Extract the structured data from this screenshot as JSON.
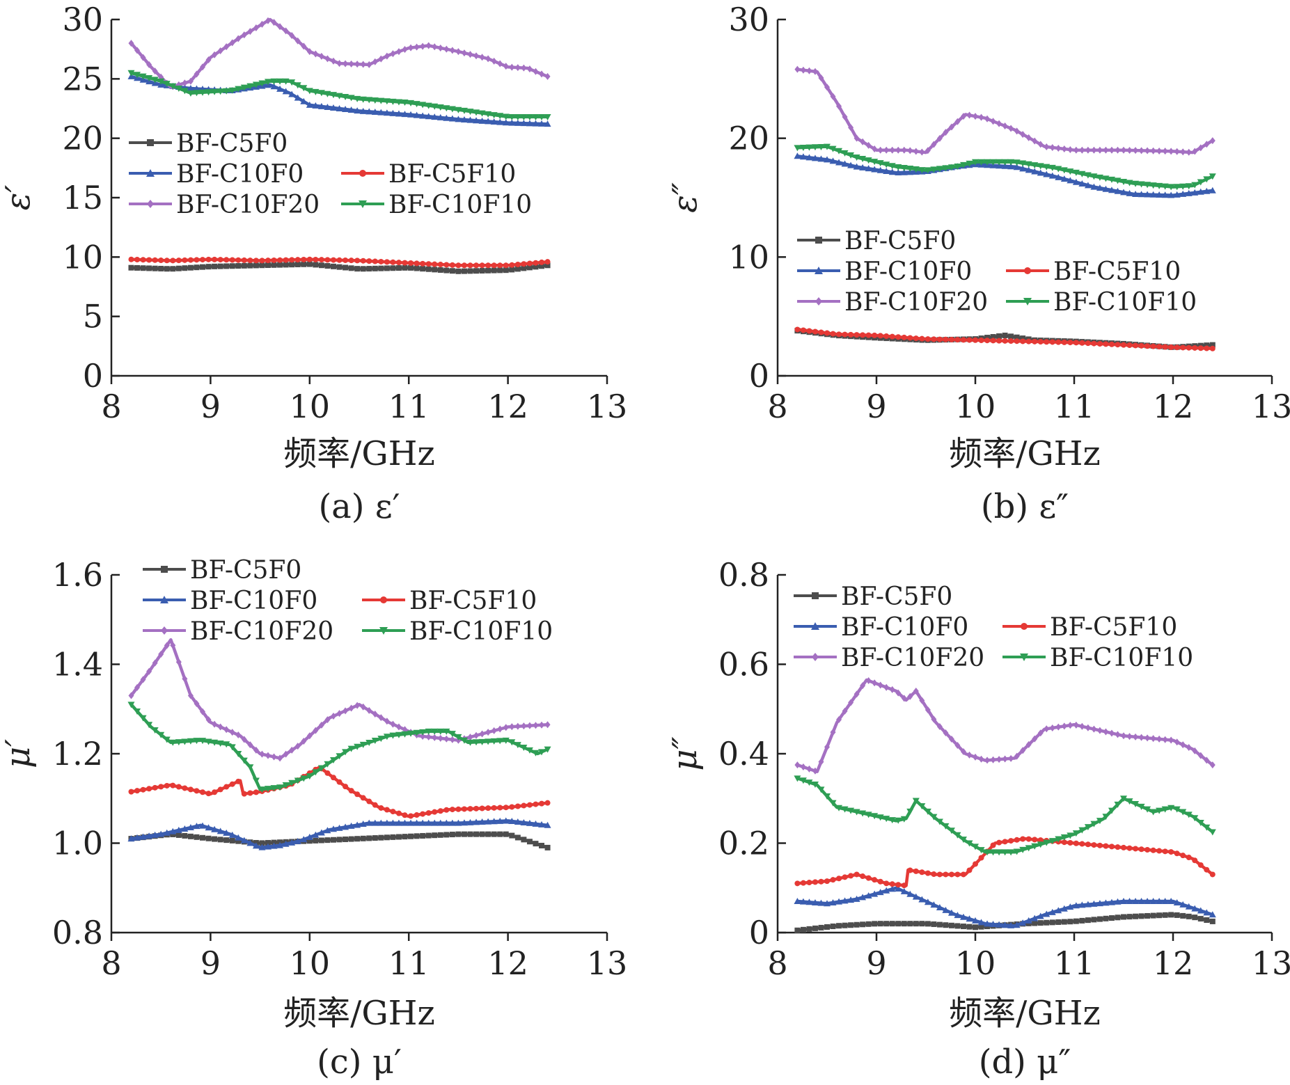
{
  "colors": {
    "BF-C5F0": "#4d4d4d",
    "BF-C10F0": "#3a5db0",
    "BF-C5F10": "#e53935",
    "BF-C10F20": "#a470c2",
    "BF-C10F10": "#2e9e54"
  },
  "chart_data": [
    {
      "type": "line",
      "caption": "(a) ε′",
      "xlabel": "频率/GHz",
      "ylabel": "ε′",
      "xlim": [
        8,
        13
      ],
      "ylim": [
        0,
        30
      ],
      "xticks": [
        "8",
        "9",
        "10",
        "11",
        "12",
        "13"
      ],
      "yticks": [
        "0",
        "5",
        "10",
        "15",
        "20",
        "25",
        "30"
      ],
      "legend_placement": "middle-left",
      "series": [
        {
          "name": "BF-C5F0",
          "marker": "square",
          "x": [
            8.2,
            8.6,
            9.0,
            9.5,
            10.0,
            10.5,
            11.0,
            11.5,
            12.0,
            12.4
          ],
          "y": [
            9.1,
            9.0,
            9.2,
            9.3,
            9.4,
            9.0,
            9.1,
            8.8,
            8.9,
            9.3
          ]
        },
        {
          "name": "BF-C10F0",
          "marker": "triangle-up",
          "x": [
            8.2,
            8.5,
            8.8,
            9.2,
            9.6,
            9.8,
            10.0,
            10.5,
            11.0,
            11.5,
            12.0,
            12.4
          ],
          "y": [
            25.2,
            24.5,
            24.2,
            24.0,
            24.5,
            23.8,
            22.8,
            22.3,
            22.0,
            21.6,
            21.3,
            21.2
          ]
        },
        {
          "name": "BF-C5F10",
          "marker": "circle",
          "x": [
            8.2,
            8.6,
            9.0,
            9.5,
            10.0,
            10.5,
            11.0,
            11.5,
            12.0,
            12.4
          ],
          "y": [
            9.8,
            9.7,
            9.8,
            9.7,
            9.8,
            9.7,
            9.5,
            9.3,
            9.3,
            9.6
          ]
        },
        {
          "name": "BF-C10F20",
          "marker": "diamond",
          "x": [
            8.2,
            8.4,
            8.6,
            8.8,
            9.0,
            9.3,
            9.6,
            9.8,
            10.0,
            10.3,
            10.6,
            10.8,
            11.0,
            11.2,
            11.5,
            11.8,
            12.0,
            12.2,
            12.4
          ],
          "y": [
            28.0,
            26.0,
            24.3,
            24.8,
            26.8,
            28.5,
            30.0,
            28.8,
            27.3,
            26.3,
            26.2,
            27.0,
            27.6,
            27.8,
            27.3,
            26.7,
            26.0,
            25.9,
            25.2
          ]
        },
        {
          "name": "BF-C10F10",
          "marker": "triangle-down",
          "x": [
            8.2,
            8.5,
            8.8,
            9.2,
            9.6,
            9.8,
            10.0,
            10.5,
            11.0,
            11.5,
            12.0,
            12.4
          ],
          "y": [
            25.5,
            24.8,
            23.8,
            24.0,
            24.8,
            24.8,
            24.0,
            23.3,
            23.0,
            22.4,
            21.8,
            21.8
          ]
        }
      ]
    },
    {
      "type": "line",
      "caption": "(b) ε″",
      "xlabel": "频率/GHz",
      "ylabel": "ε″",
      "xlim": [
        8,
        13
      ],
      "ylim": [
        0,
        30
      ],
      "xticks": [
        "8",
        "9",
        "10",
        "11",
        "12",
        "13"
      ],
      "yticks": [
        "0",
        "10",
        "20",
        "30"
      ],
      "legend_placement": "middle-left",
      "series": [
        {
          "name": "BF-C5F0",
          "marker": "square",
          "x": [
            8.2,
            8.6,
            9.0,
            9.5,
            10.0,
            10.3,
            10.6,
            11.0,
            11.5,
            12.0,
            12.4
          ],
          "y": [
            3.8,
            3.4,
            3.2,
            3.0,
            3.1,
            3.4,
            3.0,
            2.9,
            2.7,
            2.4,
            2.6
          ]
        },
        {
          "name": "BF-C10F0",
          "marker": "triangle-up",
          "x": [
            8.2,
            8.5,
            8.8,
            9.2,
            9.5,
            9.8,
            10.0,
            10.4,
            10.8,
            11.2,
            11.6,
            12.0,
            12.4
          ],
          "y": [
            18.5,
            18.2,
            17.6,
            17.1,
            17.2,
            17.6,
            17.8,
            17.6,
            16.8,
            15.9,
            15.3,
            15.2,
            15.6
          ]
        },
        {
          "name": "BF-C5F10",
          "marker": "circle",
          "x": [
            8.2,
            8.6,
            9.0,
            9.5,
            10.0,
            10.5,
            11.0,
            11.5,
            12.0,
            12.4
          ],
          "y": [
            3.9,
            3.5,
            3.4,
            3.1,
            3.0,
            2.9,
            2.8,
            2.6,
            2.4,
            2.3
          ]
        },
        {
          "name": "BF-C10F20",
          "marker": "diamond",
          "x": [
            8.2,
            8.4,
            8.6,
            8.8,
            9.0,
            9.3,
            9.5,
            9.7,
            9.9,
            10.1,
            10.4,
            10.7,
            11.0,
            11.5,
            12.0,
            12.2,
            12.4
          ],
          "y": [
            25.8,
            25.6,
            23.0,
            20.0,
            19.0,
            19.0,
            18.8,
            20.5,
            22.0,
            21.7,
            20.7,
            19.3,
            19.0,
            19.0,
            18.9,
            18.8,
            19.8
          ]
        },
        {
          "name": "BF-C10F10",
          "marker": "triangle-down",
          "x": [
            8.2,
            8.5,
            8.8,
            9.2,
            9.5,
            9.8,
            10.0,
            10.4,
            10.8,
            11.2,
            11.6,
            12.0,
            12.2,
            12.4
          ],
          "y": [
            19.2,
            19.3,
            18.4,
            17.6,
            17.3,
            17.6,
            18.0,
            18.0,
            17.5,
            16.8,
            16.2,
            15.9,
            16.0,
            16.8
          ]
        }
      ]
    },
    {
      "type": "line",
      "caption": "(c) μ′",
      "xlabel": "频率/GHz",
      "ylabel": "μ′",
      "xlim": [
        8,
        13
      ],
      "ylim": [
        0.8,
        1.6
      ],
      "xticks": [
        "8",
        "9",
        "10",
        "11",
        "12",
        "13"
      ],
      "yticks": [
        "0.8",
        "1.0",
        "1.2",
        "1.4",
        "1.6"
      ],
      "legend_placement": "top-left",
      "series": [
        {
          "name": "BF-C5F0",
          "marker": "square",
          "x": [
            8.2,
            8.6,
            9.0,
            9.5,
            10.0,
            10.5,
            11.0,
            11.5,
            12.0,
            12.2,
            12.4
          ],
          "y": [
            1.01,
            1.02,
            1.01,
            1.0,
            1.005,
            1.01,
            1.015,
            1.02,
            1.02,
            1.005,
            0.99
          ]
        },
        {
          "name": "BF-C10F0",
          "marker": "triangle-up",
          "x": [
            8.2,
            8.5,
            8.9,
            9.2,
            9.5,
            9.7,
            9.9,
            10.2,
            10.6,
            11.0,
            11.5,
            12.0,
            12.4
          ],
          "y": [
            1.01,
            1.02,
            1.04,
            1.02,
            0.99,
            0.995,
            1.005,
            1.03,
            1.045,
            1.045,
            1.045,
            1.05,
            1.04
          ]
        },
        {
          "name": "BF-C5F10",
          "marker": "circle",
          "x": [
            8.2,
            8.6,
            9.0,
            9.3,
            9.33,
            9.5,
            9.8,
            10.1,
            10.4,
            10.7,
            11.0,
            11.4,
            12.0,
            12.4
          ],
          "y": [
            1.115,
            1.13,
            1.11,
            1.14,
            1.11,
            1.115,
            1.13,
            1.17,
            1.12,
            1.08,
            1.06,
            1.075,
            1.08,
            1.09
          ]
        },
        {
          "name": "BF-C10F20",
          "marker": "diamond",
          "x": [
            8.2,
            8.4,
            8.6,
            8.8,
            9.0,
            9.3,
            9.5,
            9.7,
            9.9,
            10.2,
            10.5,
            10.8,
            11.1,
            11.5,
            12.0,
            12.4
          ],
          "y": [
            1.33,
            1.39,
            1.455,
            1.33,
            1.27,
            1.24,
            1.2,
            1.19,
            1.22,
            1.28,
            1.31,
            1.27,
            1.24,
            1.23,
            1.26,
            1.265
          ]
        },
        {
          "name": "BF-C10F10",
          "marker": "triangle-down",
          "x": [
            8.2,
            8.4,
            8.6,
            8.9,
            9.2,
            9.4,
            9.5,
            9.7,
            10.0,
            10.4,
            10.8,
            11.2,
            11.4,
            11.6,
            12.0,
            12.3,
            12.4
          ],
          "y": [
            1.31,
            1.26,
            1.225,
            1.23,
            1.22,
            1.17,
            1.12,
            1.125,
            1.15,
            1.21,
            1.24,
            1.25,
            1.25,
            1.225,
            1.23,
            1.2,
            1.21
          ]
        }
      ]
    },
    {
      "type": "line",
      "caption": "(d) μ″",
      "xlabel": "频率/GHz",
      "ylabel": "μ″",
      "xlim": [
        8,
        13
      ],
      "ylim": [
        0,
        0.8
      ],
      "xticks": [
        "8",
        "9",
        "10",
        "11",
        "12",
        "13"
      ],
      "yticks": [
        "0",
        "0.2",
        "0.4",
        "0.6",
        "0.8"
      ],
      "legend_placement": "top-left",
      "series": [
        {
          "name": "BF-C5F0",
          "marker": "square",
          "x": [
            8.2,
            8.6,
            9.0,
            9.5,
            10.0,
            10.5,
            11.0,
            11.5,
            12.0,
            12.2,
            12.4
          ],
          "y": [
            0.005,
            0.015,
            0.02,
            0.02,
            0.012,
            0.02,
            0.025,
            0.035,
            0.04,
            0.035,
            0.025
          ]
        },
        {
          "name": "BF-C10F0",
          "marker": "triangle-up",
          "x": [
            8.2,
            8.5,
            8.8,
            9.2,
            9.5,
            9.8,
            10.1,
            10.4,
            10.7,
            11.0,
            11.5,
            12.0,
            12.4
          ],
          "y": [
            0.07,
            0.065,
            0.075,
            0.1,
            0.07,
            0.04,
            0.02,
            0.015,
            0.04,
            0.06,
            0.07,
            0.07,
            0.04
          ]
        },
        {
          "name": "BF-C5F10",
          "marker": "circle",
          "x": [
            8.2,
            8.5,
            8.8,
            9.1,
            9.3,
            9.32,
            9.6,
            9.9,
            10.2,
            10.5,
            11.0,
            11.5,
            12.0,
            12.2,
            12.4
          ],
          "y": [
            0.11,
            0.115,
            0.13,
            0.11,
            0.105,
            0.14,
            0.13,
            0.13,
            0.2,
            0.21,
            0.2,
            0.19,
            0.18,
            0.165,
            0.13
          ]
        },
        {
          "name": "BF-C10F20",
          "marker": "diamond",
          "x": [
            8.2,
            8.4,
            8.6,
            8.9,
            9.2,
            9.3,
            9.4,
            9.6,
            9.9,
            10.1,
            10.4,
            10.7,
            11.0,
            11.5,
            12.0,
            12.2,
            12.4
          ],
          "y": [
            0.375,
            0.36,
            0.47,
            0.565,
            0.54,
            0.52,
            0.54,
            0.47,
            0.4,
            0.385,
            0.39,
            0.455,
            0.465,
            0.44,
            0.43,
            0.41,
            0.375
          ]
        },
        {
          "name": "BF-C10F10",
          "marker": "triangle-down",
          "x": [
            8.2,
            8.4,
            8.6,
            8.9,
            9.2,
            9.3,
            9.4,
            9.6,
            9.9,
            10.1,
            10.4,
            10.7,
            11.0,
            11.3,
            11.5,
            11.8,
            12.0,
            12.2,
            12.4
          ],
          "y": [
            0.345,
            0.33,
            0.28,
            0.265,
            0.25,
            0.255,
            0.295,
            0.255,
            0.205,
            0.18,
            0.18,
            0.2,
            0.22,
            0.255,
            0.3,
            0.27,
            0.28,
            0.26,
            0.225
          ]
        }
      ]
    }
  ]
}
